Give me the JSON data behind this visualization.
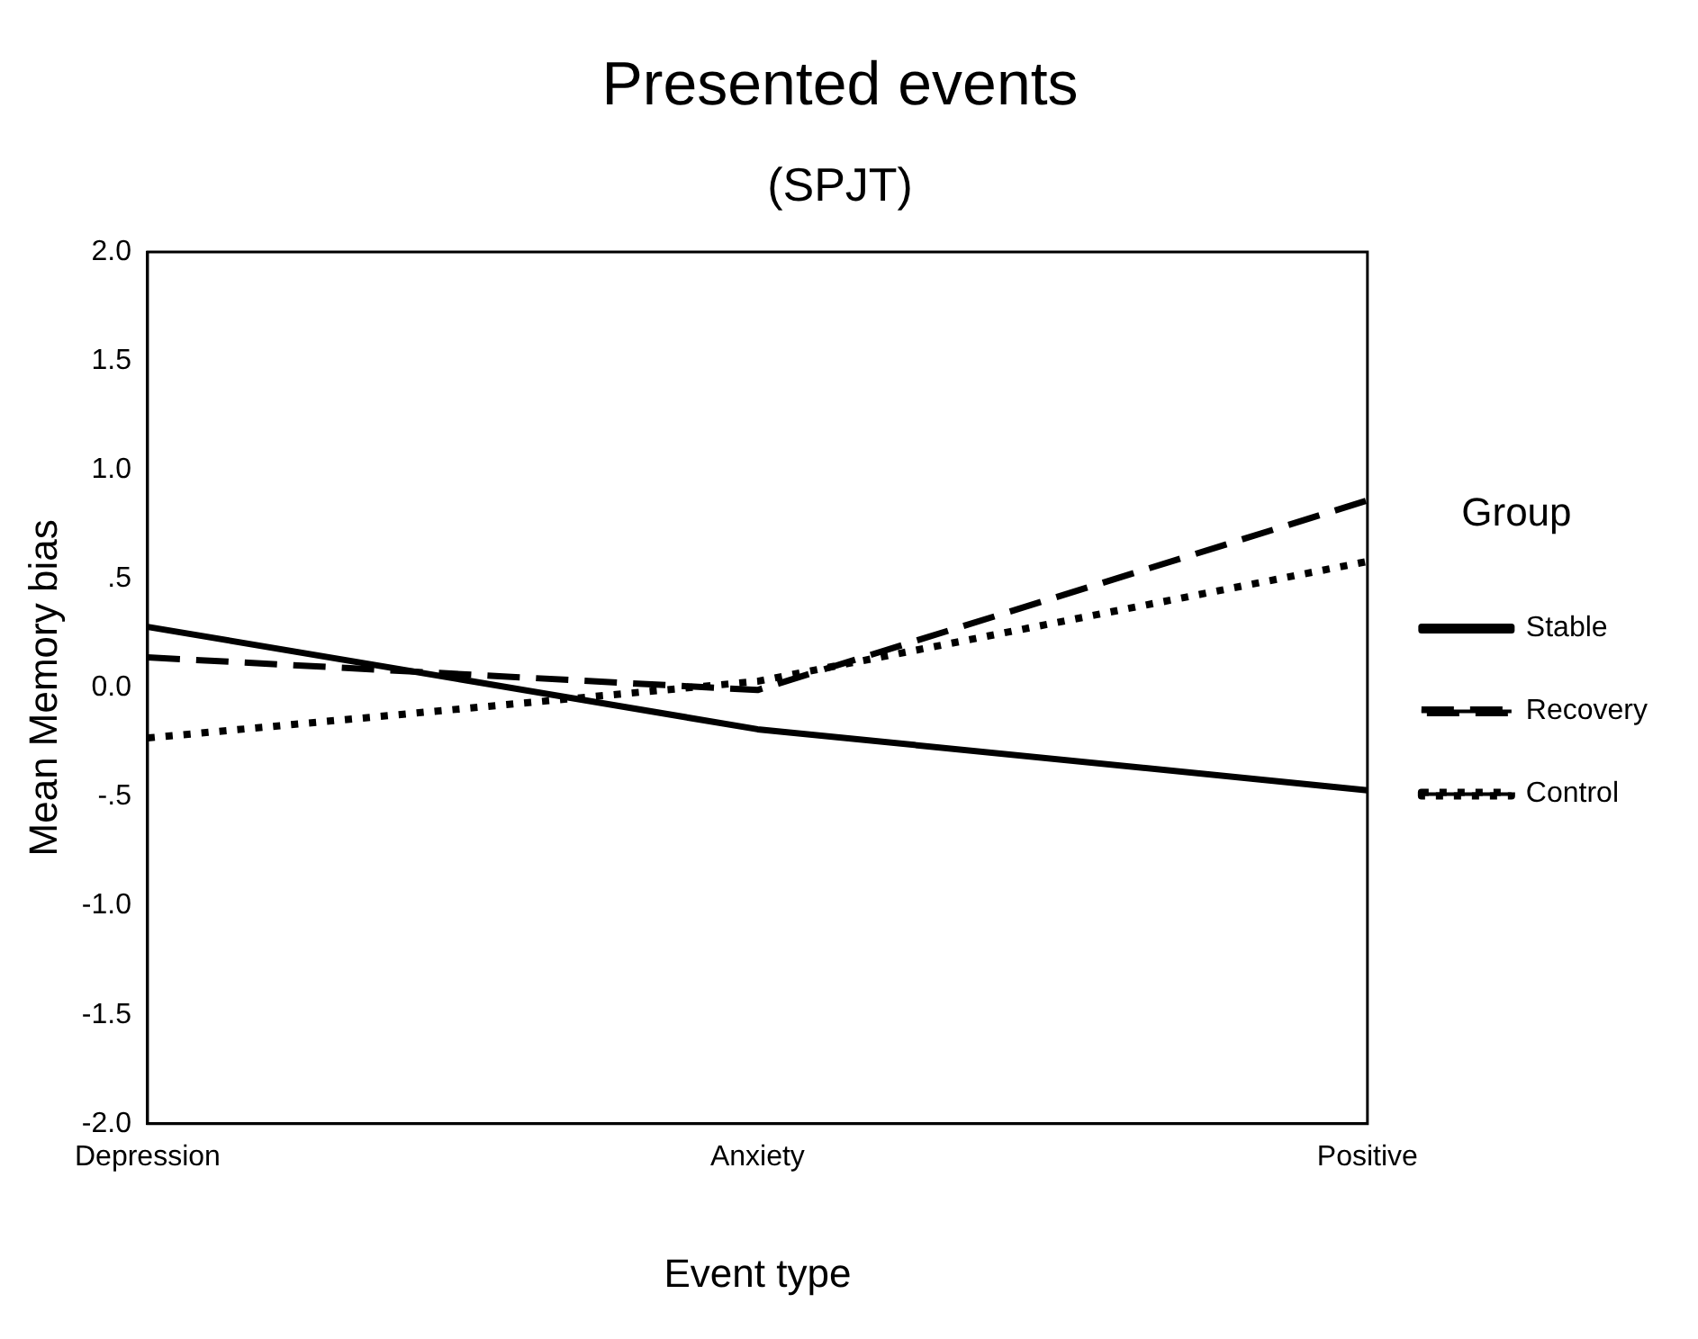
{
  "chart_data": {
    "type": "line",
    "title": "Presented events",
    "subtitle": "(SPJT)",
    "xlabel": "Event type",
    "ylabel": "Mean Memory bias",
    "legend_title": "Group",
    "categories": [
      "Depression",
      "Anxiety",
      "Positive"
    ],
    "series": [
      {
        "name": "Stable",
        "color": "#000000",
        "line_style": "solid",
        "values": [
          0.28,
          -0.19,
          -0.47
        ]
      },
      {
        "name": "Recovery",
        "color": "#000000",
        "line_style": "dashed",
        "values": [
          0.14,
          -0.01,
          0.86
        ]
      },
      {
        "name": "Control",
        "color": "#000000",
        "line_style": "dotted",
        "values": [
          -0.23,
          0.03,
          0.58
        ]
      }
    ],
    "ylim": [
      -2,
      2
    ],
    "yticks": [
      {
        "value": -2,
        "label": "-2.0"
      },
      {
        "value": -1.5,
        "label": "-1.5"
      },
      {
        "value": -1,
        "label": "-1.0"
      },
      {
        "value": -0.5,
        "label": "-.5"
      },
      {
        "value": 0,
        "label": "0.0"
      },
      {
        "value": 0.5,
        "label": ".5"
      },
      {
        "value": 1,
        "label": "1.0"
      },
      {
        "value": 1.5,
        "label": "1.5"
      },
      {
        "value": 2,
        "label": "2.0"
      }
    ],
    "grid": false,
    "legend": "right",
    "marker": "none"
  }
}
